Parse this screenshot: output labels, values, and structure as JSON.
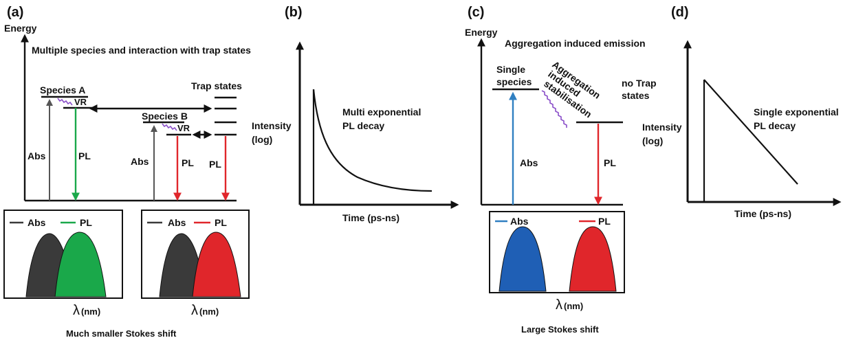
{
  "panels": {
    "a": {
      "letter": "(a)",
      "axis_label": "Energy",
      "subtitle": "Multiple species and interaction with trap states",
      "species_a": "Species A",
      "species_b": "Species B",
      "trap_states": "Trap states",
      "vr": "VR",
      "abs": "Abs",
      "pl": "PL",
      "legend_abs": "Abs",
      "legend_pl": "PL",
      "lambda": "λ",
      "lambda_unit": "(nm)",
      "caption": "Much smaller Stokes shift"
    },
    "b": {
      "letter": "(b)",
      "ylabel_1": "Intensity",
      "ylabel_2": "(log)",
      "xlabel": "Time (ps-ns)",
      "annotation_1": "Multi exponential",
      "annotation_2": "PL decay"
    },
    "c": {
      "letter": "(c)",
      "axis_label": "Energy",
      "subtitle": "Aggregation induced emission",
      "single_1": "Single",
      "single_2": "species",
      "stab_1": "Aggregation",
      "stab_2": "induced",
      "stab_3": "stabilisation",
      "no_trap_1": "no Trap",
      "no_trap_2": "states",
      "abs": "Abs",
      "pl": "PL",
      "legend_abs": "Abs",
      "legend_pl": "PL",
      "lambda": "λ",
      "lambda_unit": "(nm)",
      "caption": "Large Stokes shift"
    },
    "d": {
      "letter": "(d)",
      "ylabel_1": "Intensity",
      "ylabel_2": "(log)",
      "xlabel": "Time (ps-ns)",
      "annotation_1": "Single exponential",
      "annotation_2": "PL decay"
    }
  },
  "colors": {
    "black": "#111111",
    "green": "#1aa84a",
    "red": "#e0262b",
    "blue": "#2f7fc1",
    "dark_gray": "#3a3a3a",
    "purple": "#8a4fc9",
    "peak_blue": "#1f5fb5"
  }
}
